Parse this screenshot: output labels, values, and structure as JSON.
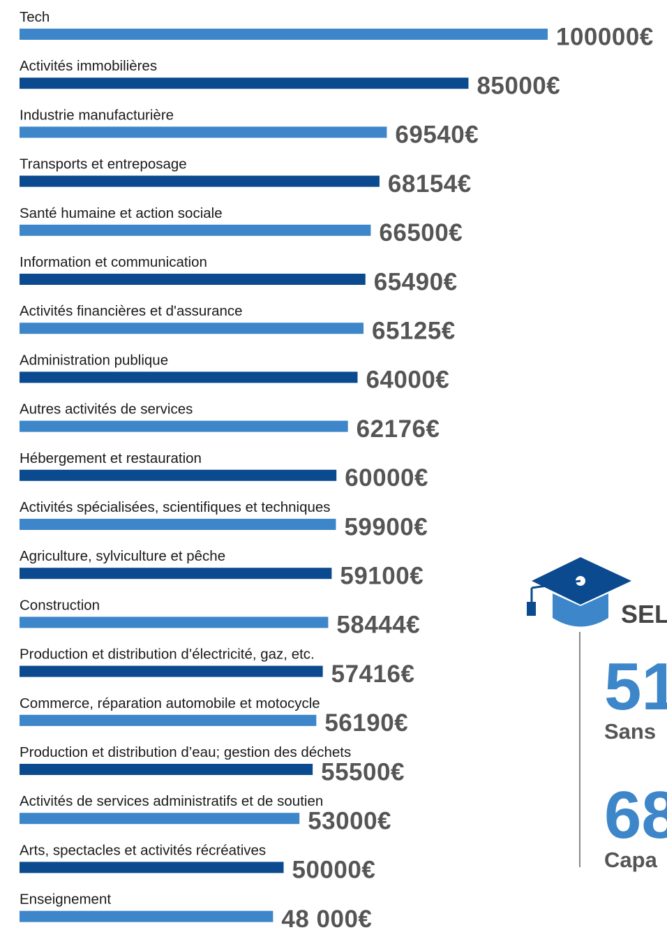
{
  "chart_data": {
    "type": "bar",
    "orientation": "horizontal",
    "categories": [
      "Tech",
      "Activités immobilières",
      "Industrie manufacturière",
      "Transports et entreposage",
      "Santé humaine et action sociale",
      "Information et communication",
      "Activités financières et d'assurance",
      "Administration publique",
      "Autres activités de services",
      "Hébergement et restauration",
      "Activités spécialisées, scientifiques et techniques",
      "Agriculture, sylviculture et pêche",
      "Construction",
      "Production et distribution d’électricité, gaz, etc.",
      "Commerce, réparation automobile et motocycle",
      "Production et distribution d’eau; gestion des déchets",
      "Activités de services administratifs et de soutien",
      "Arts, spectacles et activités récréatives",
      "Enseignement"
    ],
    "values": [
      100000,
      85000,
      69540,
      68154,
      66500,
      65490,
      65125,
      64000,
      62176,
      60000,
      59900,
      59100,
      58444,
      57416,
      56190,
      55500,
      53000,
      50000,
      48000
    ],
    "value_labels": [
      "100000€",
      "85000€",
      "69540€",
      "68154€",
      "66500€",
      "65490€",
      "65125€",
      "64000€",
      "62176€",
      "60000€",
      "59900€",
      "59100€",
      "58444€",
      "57416€",
      "56190€",
      "55500€",
      "53000€",
      "50000€",
      "48 000€"
    ],
    "colors": [
      "#3d86c9",
      "#0b4a8e"
    ],
    "xlim": [
      0,
      100000
    ]
  },
  "side_panel": {
    "heading": "SEL",
    "stats": [
      {
        "value": "51",
        "label": "Sans"
      },
      {
        "value": "68",
        "label": "Capa"
      }
    ]
  }
}
